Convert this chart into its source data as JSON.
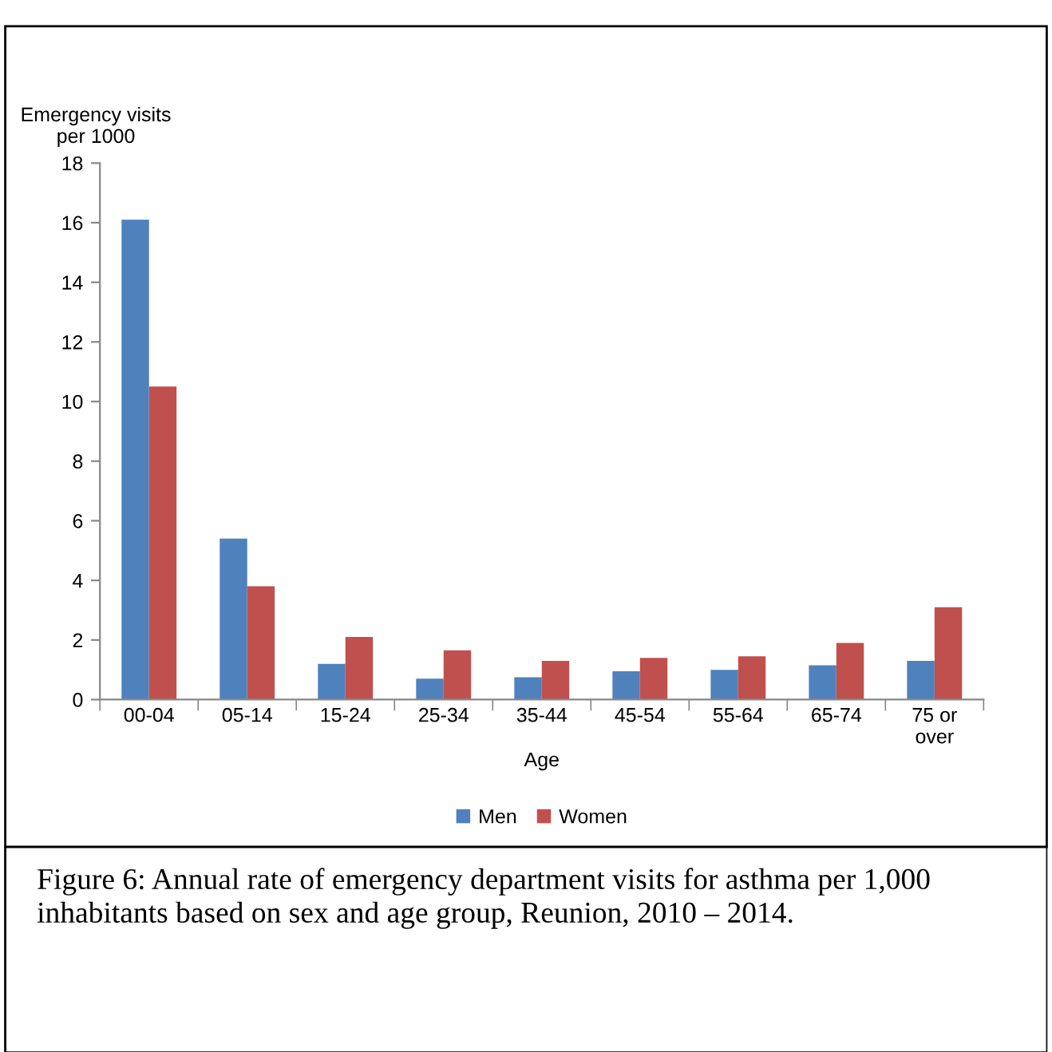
{
  "chart_data": {
    "type": "bar",
    "categories": [
      "00-04",
      "05-14",
      "15-24",
      "25-34",
      "35-44",
      "45-54",
      "55-64",
      "65-74",
      "75 or\nover"
    ],
    "series": [
      {
        "name": "Men",
        "color": "#4f81bd",
        "values": [
          16.1,
          5.4,
          1.2,
          0.7,
          0.75,
          0.95,
          1.0,
          1.15,
          1.3
        ]
      },
      {
        "name": "Women",
        "color": "#c0504d",
        "values": [
          10.5,
          3.8,
          2.1,
          1.65,
          1.3,
          1.4,
          1.45,
          1.9,
          3.1
        ]
      }
    ],
    "xlabel": "Age",
    "ylabel": "Emergency visits\nper 1000",
    "ylim": [
      0,
      18
    ],
    "yticks": [
      0,
      2,
      4,
      6,
      8,
      10,
      12,
      14,
      16,
      18
    ],
    "grid": false,
    "legend": "bottom",
    "annotations": [
      "Figure 6: Annual rate of emergency department visits for asthma per 1,000 inhabitants based on sex and age group, Reunion, 2010 – 2014."
    ]
  }
}
